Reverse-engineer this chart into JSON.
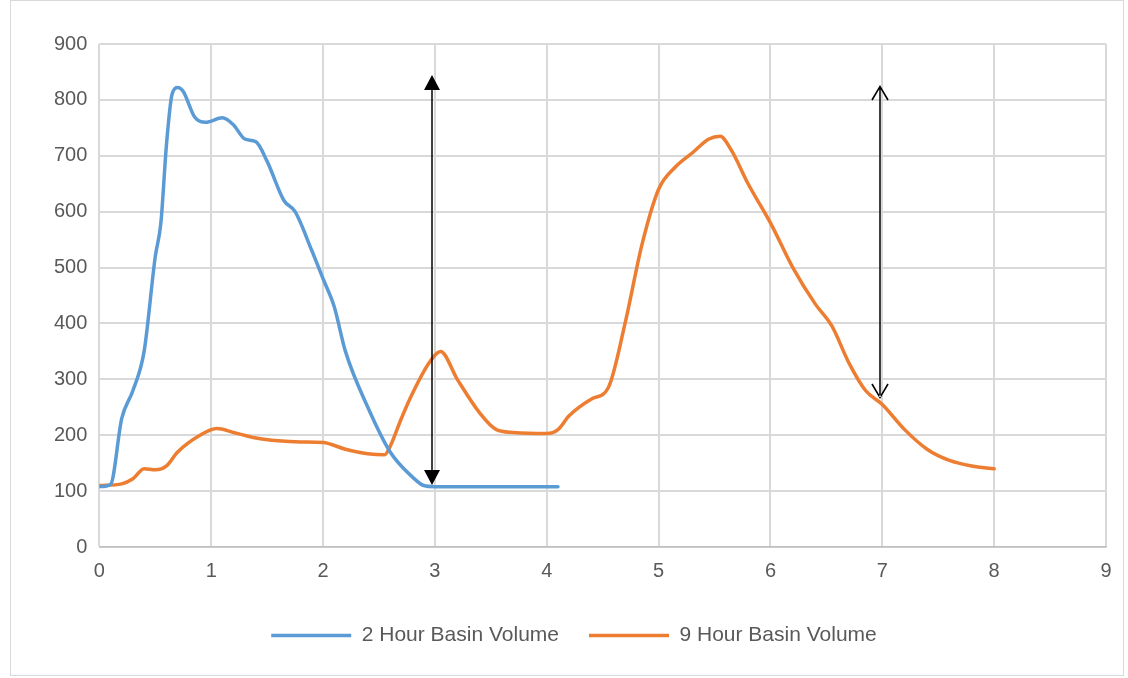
{
  "chart_data": {
    "type": "line",
    "xlim": [
      0,
      9
    ],
    "xticks": [
      0,
      1,
      2,
      3,
      4,
      5,
      6,
      7,
      8,
      9
    ],
    "ylim": [
      0,
      900
    ],
    "yticks": [
      0,
      100,
      200,
      300,
      400,
      500,
      600,
      700,
      800,
      900
    ],
    "grid": true,
    "legend": "bottom",
    "marker": "none",
    "line_style": "solid",
    "series": [
      {
        "name": "2 Hour Basin Volume",
        "color": "#5b9bd5",
        "x": [
          0,
          0.1,
          0.2,
          0.3,
          0.4,
          0.5,
          0.55,
          0.6,
          0.65,
          0.7,
          0.75,
          0.85,
          0.95,
          1.1,
          1.2,
          1.3,
          1.4,
          1.5,
          1.65,
          1.75,
          1.9,
          2.0,
          2.1,
          2.2,
          2.4,
          2.6,
          2.8,
          2.9,
          3.0,
          3.5,
          4.1
        ],
        "values": [
          108,
          112,
          230,
          280,
          350,
          520,
          580,
          720,
          810,
          822,
          815,
          770,
          760,
          768,
          755,
          730,
          725,
          690,
          620,
          600,
          530,
          480,
          430,
          350,
          250,
          170,
          125,
          110,
          108,
          108,
          108
        ]
      },
      {
        "name": "9 Hour Basin Volume",
        "color": "#ed7d31",
        "x": [
          0,
          0.2,
          0.3,
          0.4,
          0.5,
          0.6,
          0.7,
          0.9,
          1.05,
          1.2,
          1.4,
          1.6,
          1.8,
          2.0,
          2.2,
          2.4,
          2.55,
          2.6,
          2.7,
          2.8,
          2.95,
          3.05,
          3.2,
          3.4,
          3.55,
          3.7,
          4.0,
          4.1,
          4.2,
          4.4,
          4.55,
          4.7,
          4.85,
          5.0,
          5.15,
          5.3,
          5.45,
          5.55,
          5.65,
          5.8,
          6.0,
          6.2,
          6.4,
          6.55,
          6.7,
          6.85,
          7.0,
          7.2,
          7.4,
          7.6,
          7.8,
          8.0
        ],
        "values": [
          110,
          113,
          122,
          140,
          138,
          145,
          170,
          200,
          212,
          205,
          195,
          190,
          188,
          187,
          175,
          167,
          165,
          180,
          230,
          275,
          330,
          350,
          300,
          240,
          210,
          205,
          203,
          210,
          235,
          265,
          285,
          400,
          540,
          640,
          680,
          705,
          730,
          735,
          710,
          650,
          580,
          500,
          435,
          395,
          330,
          280,
          255,
          210,
          175,
          155,
          145,
          140
        ]
      }
    ]
  }
}
